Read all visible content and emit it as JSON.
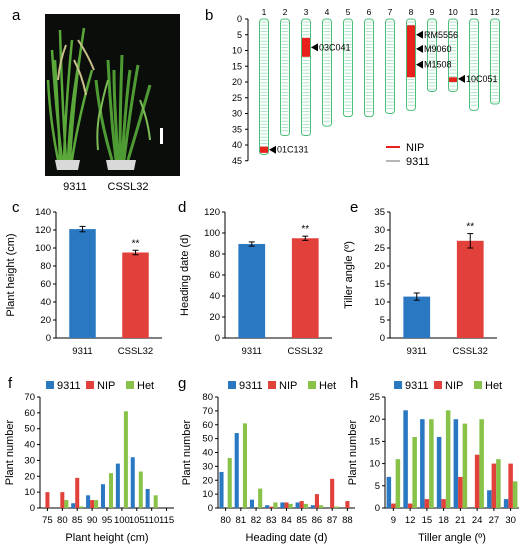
{
  "colors": {
    "blue": "#2a78c2",
    "red": "#e2413b",
    "green": "#88c248",
    "gray": "#b5b5b5",
    "chr_outline": "#4cc07a",
    "seg_line": "#9fe0bd",
    "nip_seg": "#e8211c"
  },
  "panels": {
    "a": {
      "letter": "a",
      "labels": [
        "9311",
        "CSSL32"
      ]
    },
    "b": {
      "letter": "b",
      "chromosomes": [
        "1",
        "2",
        "3",
        "4",
        "5",
        "6",
        "7",
        "8",
        "9",
        "10",
        "11",
        "12"
      ],
      "y_ticks": [
        "0",
        "5",
        "10",
        "15",
        "20",
        "25",
        "30",
        "35",
        "40",
        "45"
      ],
      "markers": [
        "01C131",
        "03C041",
        "RM5556",
        "M9060",
        "M1508",
        "10C051"
      ],
      "legend": [
        {
          "label": "NIP",
          "color": "#e8211c"
        },
        {
          "label": "9311",
          "color": "#b5b5b5"
        }
      ]
    },
    "c": {
      "letter": "c",
      "sig": "**"
    },
    "d": {
      "letter": "d",
      "sig": "**"
    },
    "e": {
      "letter": "e",
      "sig": "**"
    },
    "f": {
      "letter": "f"
    },
    "g": {
      "letter": "g"
    },
    "h": {
      "letter": "h"
    }
  },
  "chart_data": [
    {
      "id": "c",
      "type": "bar",
      "categories": [
        "9311",
        "CSSL32"
      ],
      "values": [
        121,
        95
      ],
      "errors": [
        3,
        2.5
      ],
      "ylabel": "Plant height (cm)",
      "ylim": [
        0,
        140
      ],
      "yticks": [
        0,
        20,
        40,
        60,
        80,
        100,
        120,
        140
      ]
    },
    {
      "id": "d",
      "type": "bar",
      "categories": [
        "9311",
        "CSSL32"
      ],
      "values": [
        89.5,
        95
      ],
      "errors": [
        2,
        2
      ],
      "ylabel": "Heading date  (d)",
      "ylim": [
        0,
        120
      ],
      "yticks": [
        0,
        20,
        40,
        60,
        80,
        100,
        120
      ]
    },
    {
      "id": "e",
      "type": "bar",
      "categories": [
        "9311",
        "CSSL32"
      ],
      "values": [
        11.5,
        27
      ],
      "errors": [
        1,
        2
      ],
      "ylabel": "Tiller angle  (º)",
      "ylim": [
        0,
        35
      ],
      "yticks": [
        0,
        5,
        10,
        15,
        20,
        25,
        30,
        35
      ]
    },
    {
      "id": "f",
      "type": "bar",
      "categories": [
        "75",
        "80",
        "85",
        "90",
        "95",
        "100",
        "105",
        "110",
        "115"
      ],
      "series": [
        {
          "name": "9311",
          "values": [
            0,
            0,
            3,
            8,
            15,
            28,
            32,
            12,
            0
          ]
        },
        {
          "name": "NIP",
          "values": [
            10,
            10,
            19,
            5,
            0,
            0,
            0,
            0,
            0
          ]
        },
        {
          "name": "Het",
          "values": [
            0,
            5,
            1,
            5,
            22,
            61,
            23,
            8,
            0
          ]
        }
      ],
      "xlabel": "Plant height (cm)",
      "ylabel": "Plant number",
      "ylim": [
        0,
        70
      ],
      "yticks": [
        0,
        10,
        20,
        30,
        40,
        50,
        60,
        70
      ],
      "legend": [
        "9311",
        "NIP",
        "Het"
      ]
    },
    {
      "id": "g",
      "type": "bar",
      "categories": [
        "80",
        "81",
        "82",
        "83",
        "84",
        "85",
        "86",
        "87",
        "88"
      ],
      "series": [
        {
          "name": "9311",
          "values": [
            26,
            54,
            6,
            2,
            4,
            4,
            2,
            0,
            0
          ]
        },
        {
          "name": "NIP",
          "values": [
            0,
            0,
            0,
            1,
            4,
            5,
            10,
            21,
            5
          ]
        },
        {
          "name": "Het",
          "values": [
            36,
            61,
            14,
            4,
            3,
            3,
            2,
            1,
            0
          ]
        }
      ],
      "xlabel": "Heading date (d)",
      "ylabel": "Plant number",
      "ylim": [
        0,
        80
      ],
      "yticks": [
        0,
        10,
        20,
        30,
        40,
        50,
        60,
        70,
        80
      ],
      "legend": [
        "9311",
        "NIP",
        "Het"
      ]
    },
    {
      "id": "h",
      "type": "bar",
      "categories": [
        "9",
        "12",
        "15",
        "18",
        "21",
        "24",
        "27",
        "30"
      ],
      "series": [
        {
          "name": "9311",
          "values": [
            7,
            22,
            20,
            16,
            20,
            0,
            4,
            2
          ]
        },
        {
          "name": "NIP",
          "values": [
            1,
            1,
            2,
            2,
            7,
            12,
            10,
            10
          ]
        },
        {
          "name": "Het",
          "values": [
            11,
            16,
            20,
            22,
            19,
            20,
            11,
            6
          ]
        }
      ],
      "xlabel": "Tiller angle (º)",
      "ylabel": "Plant number",
      "ylim": [
        0,
        25
      ],
      "yticks": [
        0,
        5,
        10,
        15,
        20,
        25
      ],
      "legend": [
        "9311",
        "NIP",
        "Het"
      ]
    }
  ]
}
